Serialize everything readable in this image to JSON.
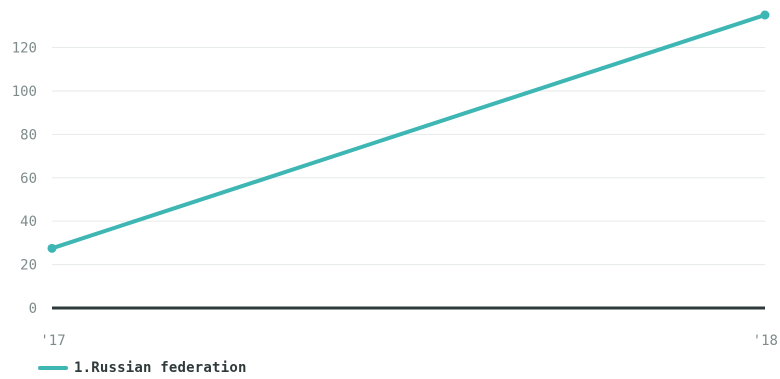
{
  "chart_data": {
    "type": "line",
    "x": [
      "'17",
      "'18"
    ],
    "series": [
      {
        "name": "1.Russian federation",
        "values": [
          27.5,
          135
        ],
        "color": "#3db6b4"
      }
    ],
    "ylim": [
      0,
      135
    ],
    "yticks": [
      0,
      20,
      40,
      60,
      80,
      100,
      120
    ],
    "grid": true,
    "legend": "bottom-left"
  },
  "colors": {
    "gridline": "#e6eaea",
    "baseline": "#2f3a3a",
    "tick_text": "#7f8b8b"
  }
}
